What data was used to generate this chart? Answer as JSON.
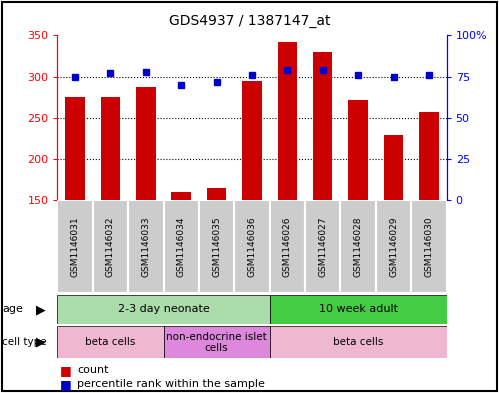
{
  "title": "GDS4937 / 1387147_at",
  "samples": [
    "GSM1146031",
    "GSM1146032",
    "GSM1146033",
    "GSM1146034",
    "GSM1146035",
    "GSM1146036",
    "GSM1146026",
    "GSM1146027",
    "GSM1146028",
    "GSM1146029",
    "GSM1146030"
  ],
  "counts": [
    275,
    275,
    287,
    160,
    165,
    295,
    342,
    330,
    272,
    229,
    257
  ],
  "percentiles": [
    75,
    77,
    78,
    70,
    72,
    76,
    79,
    79,
    76,
    75,
    76
  ],
  "ylim_left": [
    150,
    350
  ],
  "ylim_right": [
    0,
    100
  ],
  "yticks_left": [
    150,
    200,
    250,
    300,
    350
  ],
  "yticks_right": [
    0,
    25,
    50,
    75,
    100
  ],
  "bar_color": "#CC0000",
  "dot_color": "#0000CC",
  "gridlines": [
    200,
    250,
    300
  ],
  "age_groups": [
    {
      "label": "2-3 day neonate",
      "start": 0,
      "end": 6,
      "color": "#aaddaa"
    },
    {
      "label": "10 week adult",
      "start": 6,
      "end": 11,
      "color": "#44cc44"
    }
  ],
  "cell_type_groups": [
    {
      "label": "beta cells",
      "start": 0,
      "end": 3,
      "color": "#f0b8d0"
    },
    {
      "label": "non-endocrine islet\ncells",
      "start": 3,
      "end": 6,
      "color": "#dd88dd"
    },
    {
      "label": "beta cells",
      "start": 6,
      "end": 11,
      "color": "#f0b8d0"
    }
  ],
  "sample_bg_color": "#cccccc",
  "sample_border_color": "#ffffff",
  "legend_count_color": "#CC0000",
  "legend_pct_color": "#0000CC",
  "legend_count_label": "count",
  "legend_pct_label": "percentile rank within the sample",
  "age_label": "age",
  "cell_type_label": "cell type",
  "border_color": "#000000"
}
